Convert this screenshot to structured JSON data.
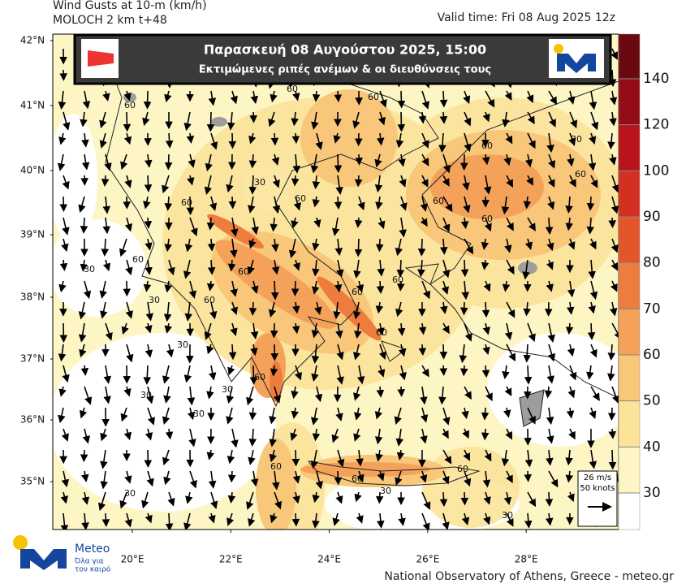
{
  "header": {
    "title": "Wind Gusts at 10-m (km/h)",
    "model": "MOLOCH 2 km t+48",
    "valid_time": "Valid time: Fri 08 Aug 2025 12z"
  },
  "banner": {
    "title": "Παρασκευή 08 Αυγούστου 2025, 15:00",
    "subtitle": "Εκτιμώμενες ριπές ανέμων & οι διευθύνσεις τους"
  },
  "latitudes": [
    "42°N",
    "41°N",
    "40°N",
    "39°N",
    "38°N",
    "37°N",
    "36°N",
    "35°N"
  ],
  "longitudes": [
    "20°E",
    "22°E",
    "24°E",
    "26°E",
    "28°E"
  ],
  "colorbar": {
    "levels": [
      30,
      40,
      50,
      60,
      70,
      80,
      90,
      100,
      120,
      140
    ],
    "colors": [
      "#ffffff",
      "#fdf5c4",
      "#fbe39a",
      "#f8c77a",
      "#f4a25a",
      "#ee7c3c",
      "#e4552a",
      "#d3301f",
      "#b81419",
      "#940c15",
      "#6a0a10"
    ]
  },
  "reference_vector": {
    "speed": "26 m/s",
    "knots": "50 knots"
  },
  "contour_labels": [
    "60",
    "60",
    "60",
    "30",
    "60",
    "60",
    "60",
    "60",
    "60",
    "30",
    "60",
    "30",
    "30",
    "60",
    "60",
    "60",
    "60",
    "30",
    "60",
    "30",
    "60",
    "60",
    "30",
    "30",
    "60",
    "30",
    "30",
    "60",
    "60",
    "30"
  ],
  "logo": {
    "name": "Meteo",
    "tagline_1": "Όλα για",
    "tagline_2": "τον καιρό"
  },
  "footer": "National Observatory of Athens, Greece - meteo.gr"
}
